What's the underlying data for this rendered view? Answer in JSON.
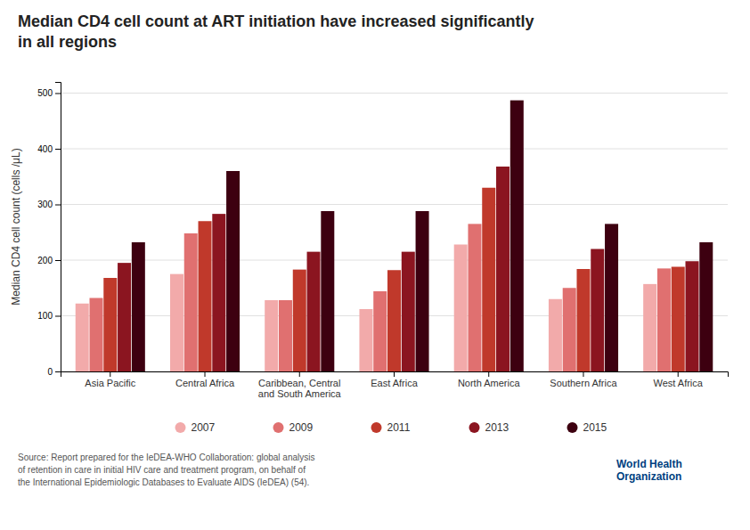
{
  "chart_data": {
    "type": "bar",
    "title": "Median CD4 cell count at ART initiation have increased significantly\nin all regions",
    "ylabel": "Median CD4 cell count (cells /μL)",
    "categories": [
      "Asia Pacific",
      "Central Africa",
      "Caribbean, Central\nand South America",
      "East Africa",
      "North America",
      "Southern Africa",
      "West Africa"
    ],
    "series": [
      {
        "name": "2007",
        "color": "#F2AAAA",
        "values": [
          122,
          175,
          128,
          112,
          228,
          130,
          157
        ]
      },
      {
        "name": "2009",
        "color": "#E07070",
        "values": [
          132,
          248,
          128,
          144,
          265,
          150,
          185
        ]
      },
      {
        "name": "2011",
        "color": "#C0392B",
        "values": [
          168,
          270,
          183,
          182,
          330,
          184,
          188
        ]
      },
      {
        "name": "2013",
        "color": "#8B1520",
        "values": [
          195,
          283,
          215,
          215,
          368,
          220,
          198
        ]
      },
      {
        "name": "2015",
        "color": "#3D0010",
        "values": [
          232,
          360,
          288,
          288,
          487,
          265,
          232
        ]
      }
    ],
    "ylim": [
      0,
      520
    ],
    "yticks": [
      0,
      100,
      200,
      300,
      400,
      500
    ],
    "grid": true,
    "legend": "bottom",
    "annotations": [
      "Source: Report prepared for the IeDEA-WHO Collaboration: global analysis\nof retention in care in initial HIV care and treatment program, on behalf of\nthe International Epidemiologic Databases to Evaluate AIDS (IeDEA) (54).",
      "World Health\nOrganization"
    ]
  }
}
